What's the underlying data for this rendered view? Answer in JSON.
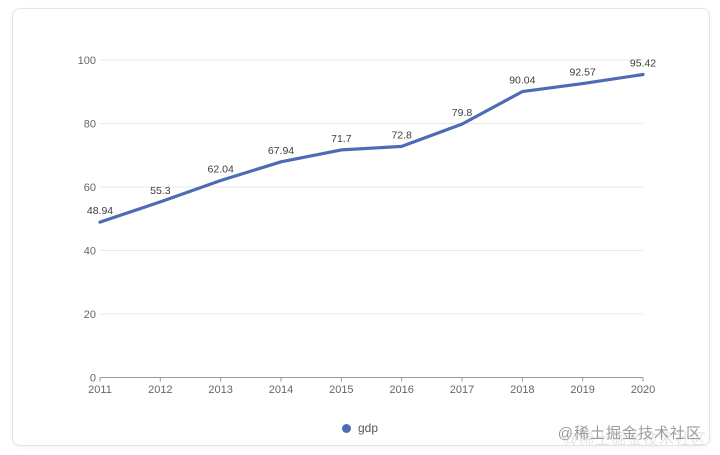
{
  "legend": {
    "label": "gdp",
    "color": "#4c6cb5"
  },
  "watermark": "@稀土掘金技术社区",
  "chart_data": {
    "type": "line",
    "title": "",
    "xlabel": "",
    "ylabel": "",
    "categories": [
      "2011",
      "2012",
      "2013",
      "2014",
      "2015",
      "2016",
      "2017",
      "2018",
      "2019",
      "2020"
    ],
    "series": [
      {
        "name": "gdp",
        "values": [
          48.94,
          55.3,
          62.04,
          67.94,
          71.7,
          72.8,
          79.8,
          90.04,
          92.57,
          95.42
        ]
      }
    ],
    "data_labels": [
      "48.94",
      "55.3",
      "62.04",
      "67.94",
      "71.7",
      "72.8",
      "79.8",
      "90.04",
      "92.57",
      "95.42"
    ],
    "ylim": [
      0,
      100
    ],
    "yticks": [
      0,
      20,
      40,
      60,
      80,
      100
    ],
    "grid": true,
    "legend_position": "bottom",
    "colors": {
      "line": "#4c6cb5",
      "grid": "#e9e9e9",
      "axis": "#9a9a9a",
      "tick_label": "#666666",
      "data_label": "#3d3d3d"
    }
  }
}
